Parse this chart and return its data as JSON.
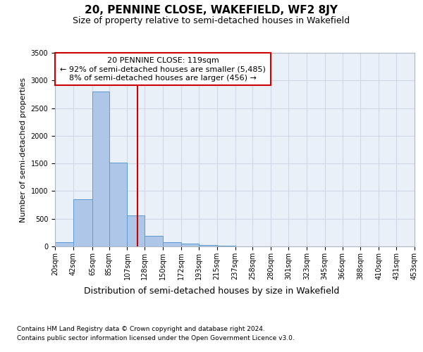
{
  "title_top": "20, PENNINE CLOSE, WAKEFIELD, WF2 8JY",
  "title_sub": "Size of property relative to semi-detached houses in Wakefield",
  "xlabel": "Distribution of semi-detached houses by size in Wakefield",
  "ylabel": "Number of semi-detached properties",
  "footer1": "Contains HM Land Registry data © Crown copyright and database right 2024.",
  "footer2": "Contains public sector information licensed under the Open Government Licence v3.0.",
  "annotation_line1": "20 PENNINE CLOSE: 119sqm",
  "annotation_line2": "← 92% of semi-detached houses are smaller (5,485)",
  "annotation_line3": "8% of semi-detached houses are larger (456) →",
  "bar_edges": [
    20,
    42,
    65,
    85,
    107,
    128,
    150,
    172,
    193,
    215,
    237,
    258,
    280,
    301,
    323,
    345,
    366,
    388,
    410,
    431,
    453
  ],
  "bar_heights": [
    75,
    850,
    2800,
    1510,
    555,
    185,
    75,
    45,
    30,
    10,
    5,
    3,
    2,
    1,
    1,
    0,
    0,
    0,
    0,
    0
  ],
  "bar_color": "#aec6e8",
  "bar_edge_color": "#5b9bd5",
  "property_size": 119,
  "vline_color": "#cc0000",
  "ylim": [
    0,
    3500
  ],
  "yticks": [
    0,
    500,
    1000,
    1500,
    2000,
    2500,
    3000,
    3500
  ],
  "grid_color": "#d0d8e8",
  "background_color": "#eaf0f8",
  "title_fontsize": 11,
  "subtitle_fontsize": 9,
  "annotation_fontsize": 8,
  "ylabel_fontsize": 8,
  "xlabel_fontsize": 9,
  "tick_fontsize": 7,
  "footer_fontsize": 6.5
}
